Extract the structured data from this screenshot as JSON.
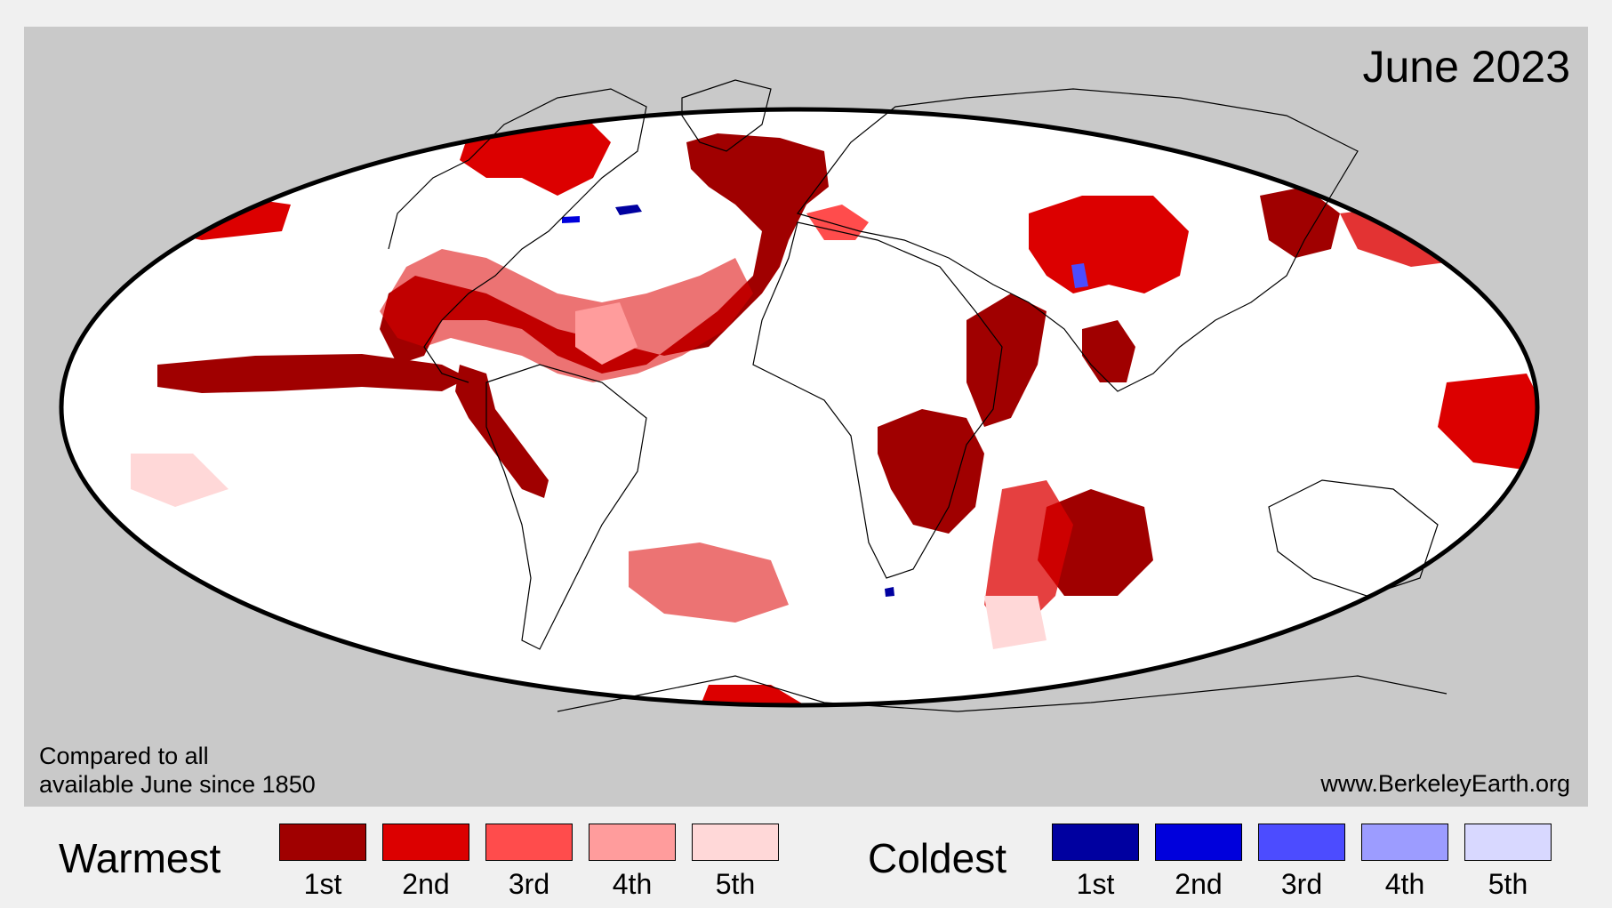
{
  "title": "June 2023",
  "note_lines": [
    "Compared to all",
    "available June since 1850"
  ],
  "source": "www.BerkeleyEarth.org",
  "map": {
    "projection": "mollweide",
    "ocean_land_background": "#ffffff",
    "outside_color": "#c9c9c9",
    "outline_color": "#000000"
  },
  "legend": {
    "warm": {
      "label": "Warmest",
      "items": [
        {
          "rank": "1st",
          "color": "#a00000"
        },
        {
          "rank": "2nd",
          "color": "#dc0000"
        },
        {
          "rank": "3rd",
          "color": "#ff4c4c"
        },
        {
          "rank": "4th",
          "color": "#ff9c9c"
        },
        {
          "rank": "5th",
          "color": "#ffd8d8"
        }
      ]
    },
    "cold": {
      "label": "Coldest",
      "items": [
        {
          "rank": "1st",
          "color": "#0000a0"
        },
        {
          "rank": "2nd",
          "color": "#0000dc"
        },
        {
          "rank": "3rd",
          "color": "#4c4cff"
        },
        {
          "rank": "4th",
          "color": "#9c9cff"
        },
        {
          "rank": "5th",
          "color": "#d8d8ff"
        }
      ]
    }
  }
}
